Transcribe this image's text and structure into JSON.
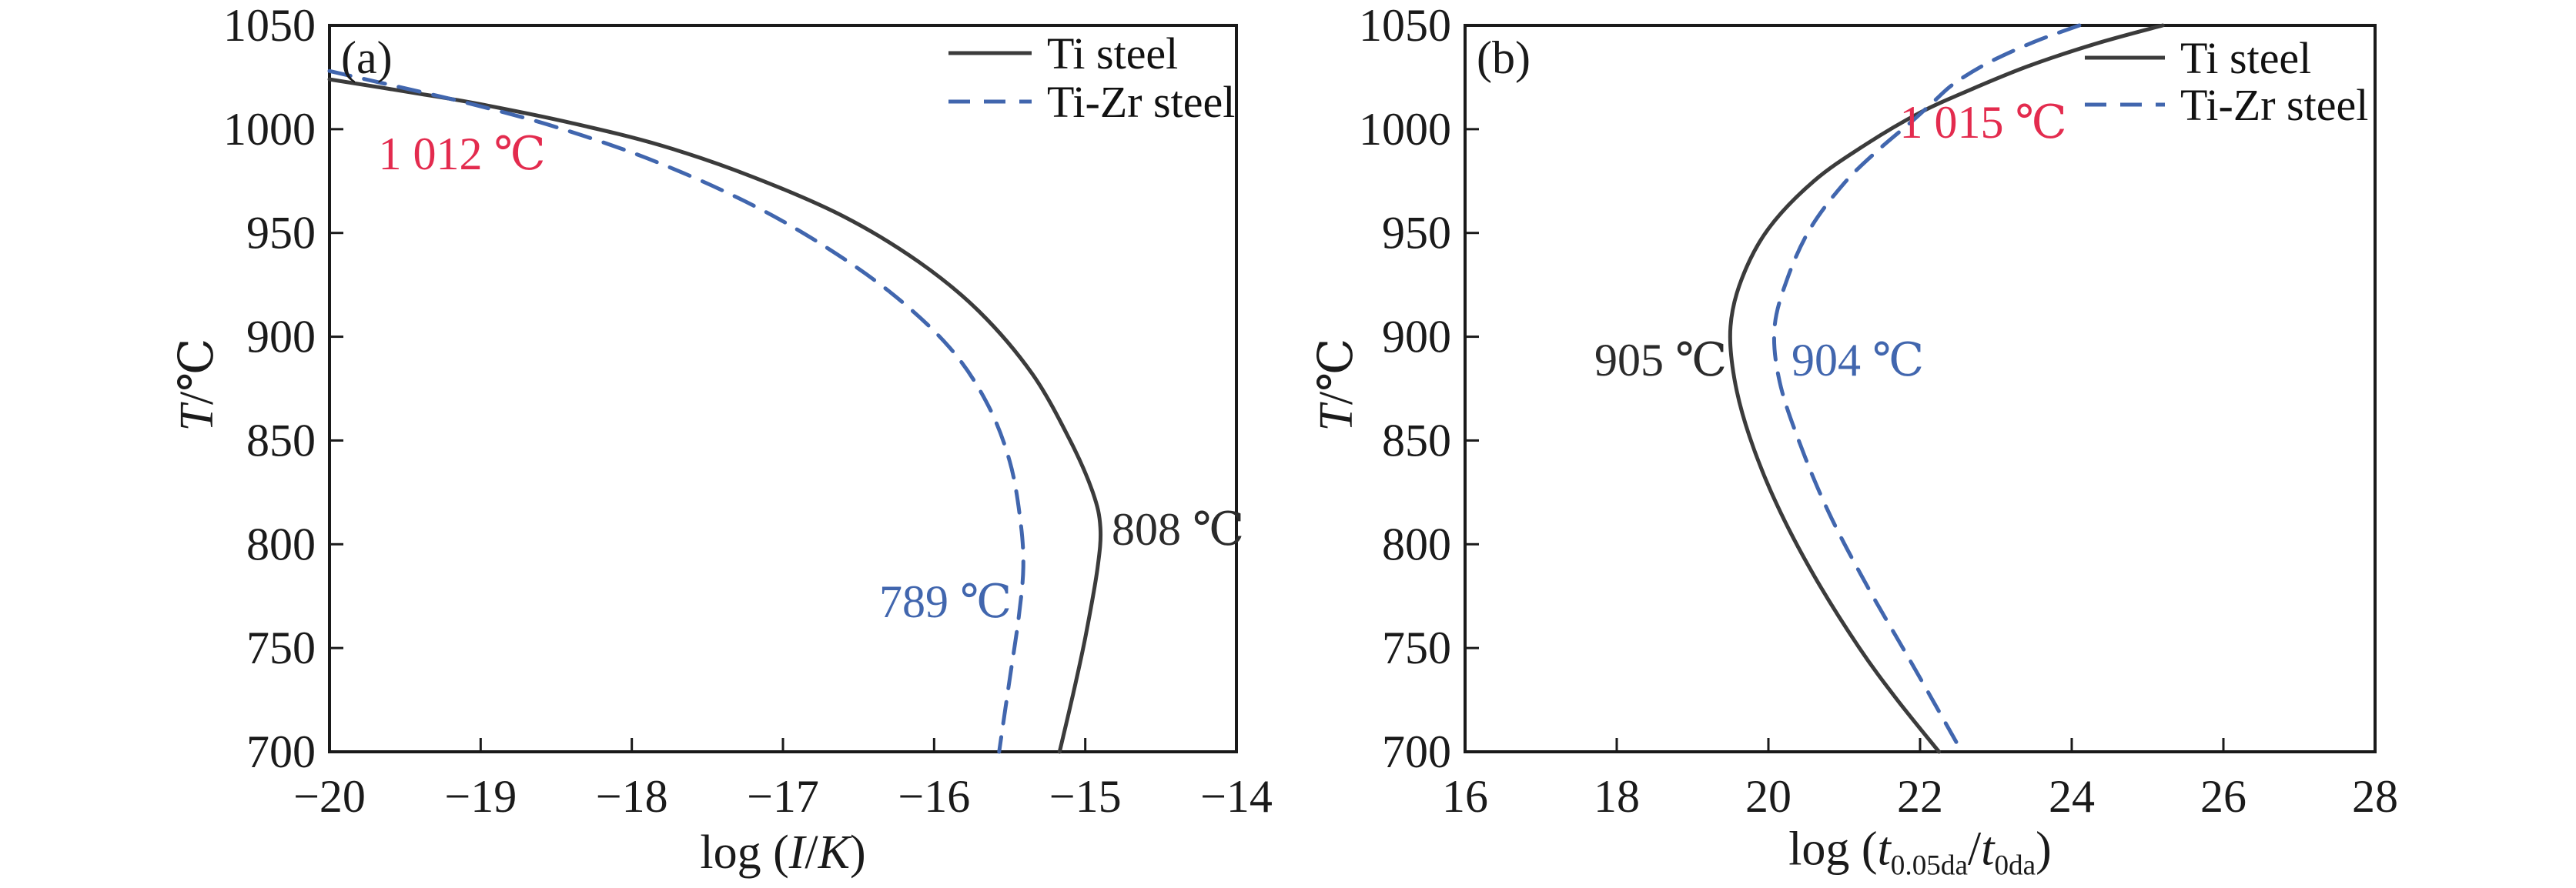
{
  "figure": {
    "background": "#ffffff",
    "panel_a_tag": "(a)",
    "panel_b_tag": "(b)"
  },
  "colors": {
    "axis": "#1a1a1a",
    "curve_dark": "#3b3b3b",
    "curve_blue": "#4166ae",
    "annotation_red": "#e32b4e",
    "annotation_blue": "#4166ae",
    "annotation_dark": "#2b2b2b"
  },
  "chart_data": {
    "type": "line",
    "panels": [
      {
        "id": "a",
        "tag": "(a)",
        "xlabel_parts": {
          "pre": "log (",
          "i1": "I",
          "slash": "/",
          "i2": "K",
          "post": ")"
        },
        "ylabel_parts": {
          "sym": "T",
          "rest": "/℃"
        },
        "x_axis": {
          "min": -20,
          "max": -14,
          "ticks": [
            {
              "v": -20,
              "label": "−20"
            },
            {
              "v": -19,
              "label": "−19"
            },
            {
              "v": -18,
              "label": "−18"
            },
            {
              "v": -17,
              "label": "−17"
            },
            {
              "v": -16,
              "label": "−16"
            },
            {
              "v": -15,
              "label": "−15"
            },
            {
              "v": -14,
              "label": "−14"
            }
          ]
        },
        "y_axis": {
          "min": 700,
          "max": 1050,
          "ticks": [
            {
              "v": 1050,
              "label": "1050"
            },
            {
              "v": 1000,
              "label": "1000"
            },
            {
              "v": 950,
              "label": "950"
            },
            {
              "v": 900,
              "label": "900"
            },
            {
              "v": 850,
              "label": "850"
            },
            {
              "v": 800,
              "label": "800"
            },
            {
              "v": 750,
              "label": "750"
            },
            {
              "v": 700,
              "label": "700"
            }
          ]
        },
        "series": [
          {
            "name": "Ti steel",
            "style": "solid",
            "color": "#3b3b3b",
            "points": [
              [
                -20.0,
                1024
              ],
              [
                -19.4,
                1017
              ],
              [
                -19.0,
                1012
              ],
              [
                -18.4,
                1003
              ],
              [
                -17.8,
                992
              ],
              [
                -17.2,
                977
              ],
              [
                -16.6,
                958
              ],
              [
                -16.1,
                936
              ],
              [
                -15.7,
                912
              ],
              [
                -15.35,
                882
              ],
              [
                -15.1,
                850
              ],
              [
                -14.95,
                825
              ],
              [
                -14.9,
                808
              ],
              [
                -14.92,
                788
              ],
              [
                -15.0,
                755
              ],
              [
                -15.08,
                728
              ],
              [
                -15.17,
                700
              ]
            ]
          },
          {
            "name": "Ti-Zr steel",
            "style": "dashed",
            "color": "#4166ae",
            "points": [
              [
                -20.0,
                1028
              ],
              [
                -19.4,
                1018
              ],
              [
                -19.0,
                1011
              ],
              [
                -18.5,
                1001
              ],
              [
                -17.9,
                986
              ],
              [
                -17.3,
                967
              ],
              [
                -16.8,
                947
              ],
              [
                -16.3,
                922
              ],
              [
                -15.9,
                895
              ],
              [
                -15.65,
                868
              ],
              [
                -15.5,
                840
              ],
              [
                -15.43,
                812
              ],
              [
                -15.41,
                789
              ],
              [
                -15.44,
                765
              ],
              [
                -15.5,
                735
              ],
              [
                -15.57,
                700
              ]
            ]
          }
        ],
        "annotations": [
          {
            "text": "1 012 ℃",
            "color": "#e32b4e",
            "meaning": "crossing temperature"
          },
          {
            "text": "808 ℃",
            "color": "#2b2b2b",
            "meaning": "nose temperature Ti steel"
          },
          {
            "text": "789 ℃",
            "color": "#4166ae",
            "meaning": "nose temperature Ti-Zr steel"
          }
        ]
      },
      {
        "id": "b",
        "tag": "(b)",
        "xlabel_parts": {
          "pre": "log (",
          "i1": "t",
          "sub1": "0.05da",
          "slash": "/",
          "i2": "t",
          "sub2": "0da",
          "post": ")"
        },
        "ylabel_parts": {
          "sym": "T",
          "rest": "/℃"
        },
        "x_axis": {
          "min": 16,
          "max": 28,
          "ticks": [
            {
              "v": 16,
              "label": "16"
            },
            {
              "v": 18,
              "label": "18"
            },
            {
              "v": 20,
              "label": "20"
            },
            {
              "v": 22,
              "label": "22"
            },
            {
              "v": 24,
              "label": "24"
            },
            {
              "v": 26,
              "label": "26"
            },
            {
              "v": 28,
              "label": "28"
            }
          ]
        },
        "y_axis": {
          "min": 700,
          "max": 1050,
          "ticks": [
            {
              "v": 1050,
              "label": "1050"
            },
            {
              "v": 1000,
              "label": "1000"
            },
            {
              "v": 950,
              "label": "950"
            },
            {
              "v": 900,
              "label": "900"
            },
            {
              "v": 850,
              "label": "850"
            },
            {
              "v": 800,
              "label": "800"
            },
            {
              "v": 750,
              "label": "750"
            },
            {
              "v": 700,
              "label": "700"
            }
          ]
        },
        "series": [
          {
            "name": "Ti steel",
            "style": "solid",
            "color": "#3b3b3b",
            "points": [
              [
                25.2,
                1050
              ],
              [
                24.3,
                1041
              ],
              [
                23.4,
                1030
              ],
              [
                22.6,
                1018
              ],
              [
                22.0,
                1008
              ],
              [
                21.3,
                993
              ],
              [
                20.6,
                975
              ],
              [
                20.0,
                952
              ],
              [
                19.65,
                928
              ],
              [
                19.5,
                905
              ],
              [
                19.55,
                880
              ],
              [
                19.75,
                852
              ],
              [
                20.1,
                820
              ],
              [
                20.6,
                785
              ],
              [
                21.2,
                750
              ],
              [
                21.7,
                725
              ],
              [
                22.25,
                700
              ]
            ]
          },
          {
            "name": "Ti-Zr steel",
            "style": "dashed",
            "color": "#4166ae",
            "points": [
              [
                24.1,
                1050
              ],
              [
                23.5,
                1042
              ],
              [
                22.9,
                1032
              ],
              [
                22.45,
                1022
              ],
              [
                22.2,
                1014
              ],
              [
                21.9,
                1004
              ],
              [
                21.45,
                990
              ],
              [
                21.0,
                974
              ],
              [
                20.55,
                952
              ],
              [
                20.25,
                928
              ],
              [
                20.08,
                904
              ],
              [
                20.15,
                878
              ],
              [
                20.42,
                848
              ],
              [
                20.8,
                815
              ],
              [
                21.3,
                780
              ],
              [
                21.9,
                742
              ],
              [
                22.55,
                700
              ]
            ]
          }
        ],
        "annotations": [
          {
            "text": "1 015 ℃",
            "color": "#e32b4e",
            "meaning": "crossing temperature"
          },
          {
            "text": "905 ℃",
            "color": "#2b2b2b",
            "meaning": "nose temperature Ti steel"
          },
          {
            "text": "904 ℃",
            "color": "#4166ae",
            "meaning": "nose temperature Ti-Zr steel"
          }
        ]
      }
    ],
    "legend": {
      "entries": [
        "Ti steel",
        "Ti-Zr steel"
      ],
      "position": "top-right inside, unframed"
    },
    "grid": false
  }
}
